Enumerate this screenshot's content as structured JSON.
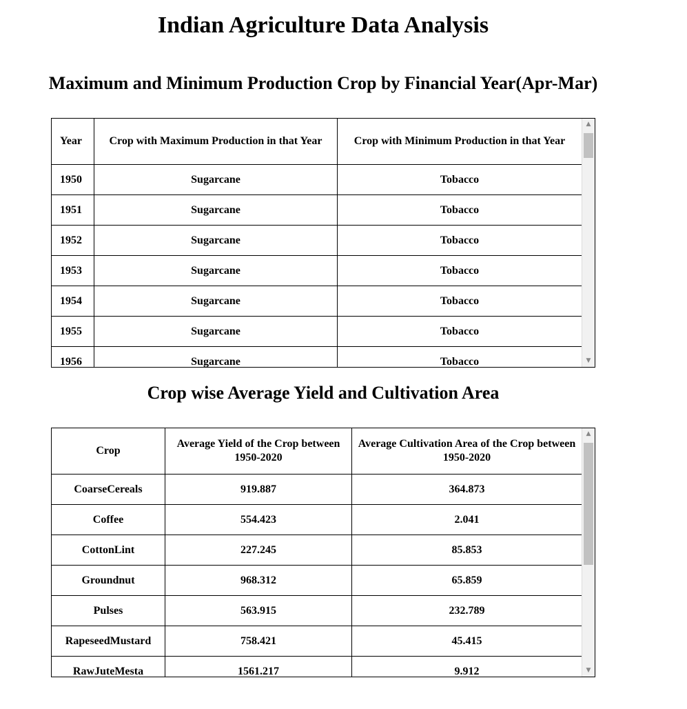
{
  "page": {
    "title": "Indian Agriculture Data Analysis"
  },
  "table1": {
    "title": "Maximum and Minimum Production Crop by Financial Year(Apr-Mar)",
    "headers": {
      "year": "Year",
      "max_crop": "Crop with Maximum Production in that Year",
      "min_crop": "Crop with Minimum Production in that Year"
    },
    "rows": [
      {
        "year": "1950",
        "max": "Sugarcane",
        "min": "Tobacco"
      },
      {
        "year": "1951",
        "max": "Sugarcane",
        "min": "Tobacco"
      },
      {
        "year": "1952",
        "max": "Sugarcane",
        "min": "Tobacco"
      },
      {
        "year": "1953",
        "max": "Sugarcane",
        "min": "Tobacco"
      },
      {
        "year": "1954",
        "max": "Sugarcane",
        "min": "Tobacco"
      },
      {
        "year": "1955",
        "max": "Sugarcane",
        "min": "Tobacco"
      },
      {
        "year": "1956",
        "max": "Sugarcane",
        "min": "Tobacco"
      }
    ]
  },
  "table2": {
    "title": "Crop wise Average Yield and Cultivation Area",
    "headers": {
      "crop": "Crop",
      "yield": "Average Yield of the Crop between 1950-2020",
      "area": "Average Cultivation Area of the Crop between 1950-2020"
    },
    "rows": [
      {
        "crop": "CoarseCereals",
        "yield": "919.887",
        "area": "364.873"
      },
      {
        "crop": "Coffee",
        "yield": "554.423",
        "area": "2.041"
      },
      {
        "crop": "CottonLint",
        "yield": "227.245",
        "area": "85.853"
      },
      {
        "crop": "Groundnut",
        "yield": "968.312",
        "area": "65.859"
      },
      {
        "crop": "Pulses",
        "yield": "563.915",
        "area": "232.789"
      },
      {
        "crop": "RapeseedMustard",
        "yield": "758.421",
        "area": "45.415"
      },
      {
        "crop": "RawJuteMesta",
        "yield": "1561.217",
        "area": "9.912"
      }
    ]
  },
  "scrollbar": {
    "up_icon": "scroll-up-arrow-icon",
    "down_icon": "scroll-down-arrow-icon"
  }
}
